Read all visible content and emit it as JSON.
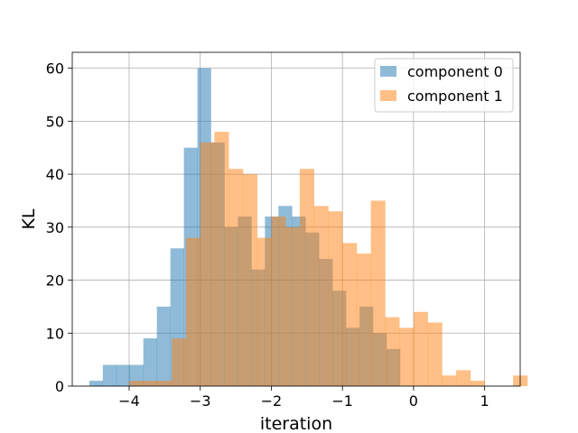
{
  "chart_data": {
    "type": "histogram",
    "title": "",
    "xlabel": "iteration",
    "ylabel": "KL",
    "xlim": [
      -4.8,
      1.5
    ],
    "ylim": [
      0,
      63
    ],
    "xticks": [
      -4,
      -3,
      -2,
      -1,
      0,
      1
    ],
    "xtick_labels": [
      "−4",
      "−3",
      "−2",
      "−1",
      "0",
      "1"
    ],
    "yticks": [
      0,
      10,
      20,
      30,
      40,
      50,
      60
    ],
    "ytick_labels": [
      "0",
      "10",
      "20",
      "30",
      "40",
      "50",
      "60"
    ],
    "grid": true,
    "legend_position": "top-right",
    "series": [
      {
        "name": "component 0",
        "color": "#1f77b4",
        "alpha": 0.5,
        "bin_start": -4.56,
        "bin_width": 0.19,
        "counts": [
          1,
          4,
          4,
          4,
          9,
          15,
          26,
          45,
          60,
          46,
          30,
          32,
          22,
          32,
          34,
          32,
          29,
          24,
          18,
          11,
          15,
          10,
          7,
          0,
          0,
          0,
          0,
          0,
          0
        ]
      },
      {
        "name": "component 1",
        "color": "#ff7f0e",
        "alpha": 0.5,
        "bin_start": -4.0,
        "bin_width": 0.2,
        "counts": [
          1,
          1,
          1,
          9,
          28,
          46,
          48,
          41,
          40,
          28,
          32,
          30,
          41,
          34,
          33,
          27,
          25,
          35,
          13,
          11,
          14,
          12,
          2,
          3,
          1,
          0,
          0,
          2
        ]
      }
    ]
  }
}
